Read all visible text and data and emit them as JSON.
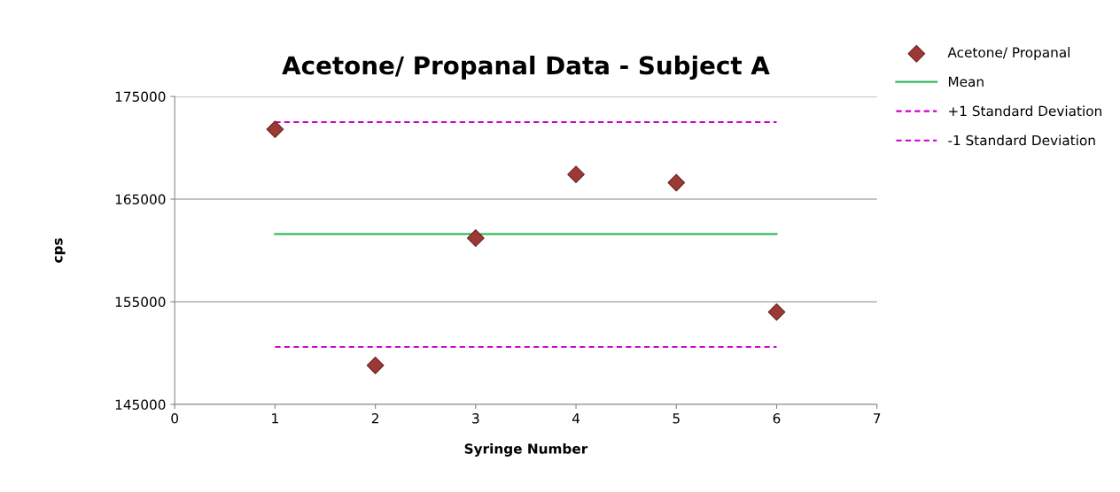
{
  "chart_data": {
    "type": "scatter",
    "title": "Acetone/ Propanal Data - Subject A",
    "xlabel": "Syringe Number",
    "ylabel": "cps",
    "series": [
      {
        "name": "Acetone/ Propanal",
        "marker": "diamond",
        "color": "#9b3a34",
        "x": [
          1,
          2,
          3,
          4,
          5,
          6
        ],
        "values": [
          171800,
          148800,
          161200,
          167400,
          166600,
          154000
        ]
      },
      {
        "name": "Mean",
        "type": "line",
        "line_style": "solid",
        "color": "#22b14c",
        "x": [
          1,
          6
        ],
        "values": [
          161600,
          161600
        ]
      },
      {
        "name": "+1 Standard Deviation",
        "type": "line",
        "line_style": "dashed",
        "color": "#cc00cc",
        "x": [
          1,
          6
        ],
        "values": [
          172500,
          172500
        ]
      },
      {
        "name": "-1 Standard Deviation",
        "type": "line",
        "line_style": "dashed",
        "color": "#cc00cc",
        "x": [
          1,
          6
        ],
        "values": [
          150600,
          150600
        ]
      }
    ],
    "xlim": [
      0,
      7
    ],
    "xticks": [
      0,
      1,
      2,
      3,
      4,
      5,
      6,
      7
    ],
    "ylim": [
      145000,
      175000
    ],
    "yticks": [
      145000,
      155000,
      165000,
      175000
    ],
    "grid": "y",
    "legend": "top right"
  }
}
